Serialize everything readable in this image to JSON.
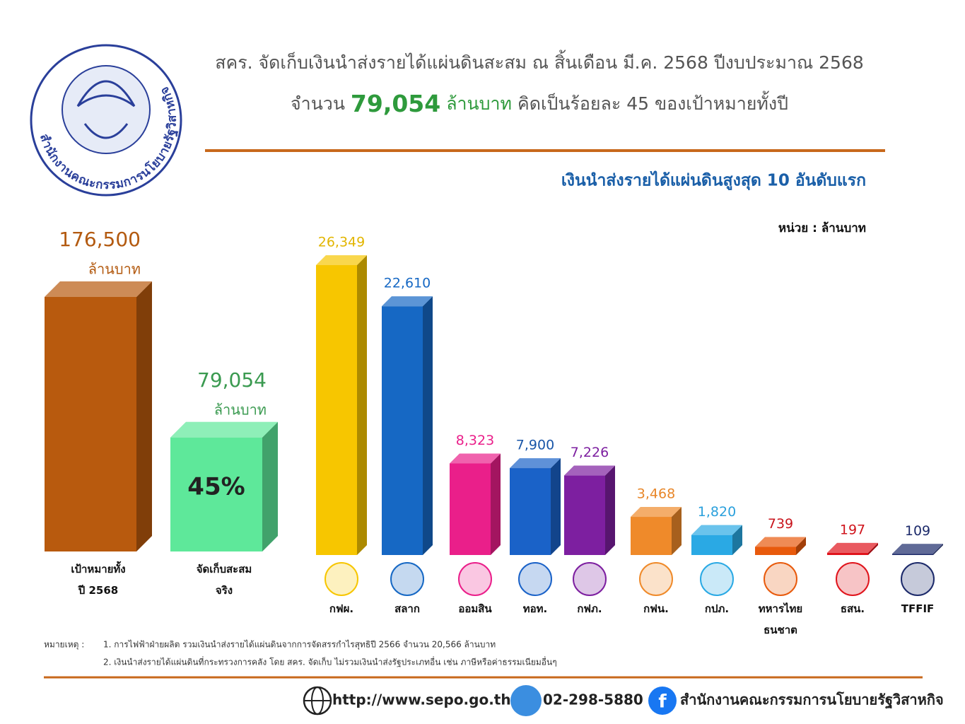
{
  "header": {
    "title": "สคร. จัดเก็บเงินนำส่งรายได้แผ่นดินสะสม ณ สิ้นเดือน มี.ค. 2568 ปีงบประมาณ 2568",
    "subtitle_parts": [
      "จำนวน",
      "79,054",
      "ล้านบาท",
      "คิดเป็นร้อยละ 45 ของเป้าหมายทั้งปี"
    ],
    "logo_text": "สำนักงานคณะกรรมการนโยบายรัฐวิสาหกิจ"
  },
  "chart_data": [
    {
      "type": "bar3d",
      "categories": [
        "เป้าหมายทั้งปี 2568",
        "จัดเก็บสะสมจริง"
      ],
      "values": [
        176500,
        79054
      ],
      "value_labels": [
        "176,500",
        "79,054"
      ],
      "unit_label": "ล้านบาท",
      "colors": [
        "#b85a0e",
        "#5ee89a"
      ],
      "label_colors": [
        "#b35a10",
        "#3a9a50"
      ],
      "annotation": "45%"
    },
    {
      "type": "bar3d",
      "title": "เงินนำส่งรายได้แผ่นดินสูงสุด 10 อันดับแรก",
      "unit_label": "หน่วย : ล้านบาท",
      "categories": [
        "กฟผ.",
        "สลาก",
        "ออมสิน",
        "ทอท.",
        "กฟภ.",
        "กฟน.",
        "กปภ.",
        "ทหารไทย ธนชาต",
        "ธสน.",
        "TFFIF"
      ],
      "values": [
        26349,
        22610,
        8323,
        7900,
        7226,
        3468,
        1820,
        739,
        197,
        109
      ],
      "value_labels": [
        "26,349",
        "22,610",
        "8,323",
        "7,900",
        "7,226",
        "3,468",
        "1,820",
        "739",
        "197",
        "109"
      ],
      "colors": [
        "#f7c600",
        "#1668c4",
        "#ea1f8a",
        "#1a62c8",
        "#7d1fa0",
        "#ef8a2a",
        "#2aa9e4",
        "#e85a0c",
        "#e0141c",
        "#1c2a6a"
      ],
      "label_colors": [
        "#e2b500",
        "#1668c4",
        "#ea1f8a",
        "#1a56a8",
        "#7d1fa0",
        "#e8872a",
        "#2aa0dc",
        "#c8141c",
        "#d0141c",
        "#1c2a6a"
      ]
    }
  ],
  "notes": {
    "label": "หมายเหตุ :",
    "items": [
      "1. การไฟฟ้าฝ่ายผลิต รวมเงินนำส่งรายได้แผ่นดินจากการจัดสรรกำไรสุทธิปี 2566 จำนวน 20,566 ล้านบาท",
      "2. เงินนำส่งรายได้แผ่นดินที่กระทรวงการคลัง โดย สคร. จัดเก็บ ไม่รวมเงินนำส่งรัฐประเภทอื่น เช่น ภาษีหรือค่าธรรมเนียมอื่นๆ"
    ]
  },
  "footer": {
    "website": "http://www.sepo.go.th",
    "phone": "02-298-5880",
    "facebook": "สำนักงานคณะกรรมการนโยบายรัฐวิสาหกิจ"
  }
}
